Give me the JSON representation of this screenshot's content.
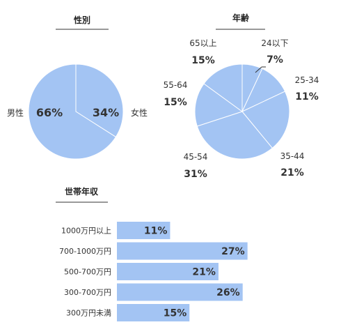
{
  "chart_data": [
    {
      "type": "pie",
      "title": "性別",
      "categories": [
        "女性",
        "男性"
      ],
      "values": [
        34,
        66
      ],
      "value_labels": [
        "34%",
        "66%"
      ],
      "color": "#a3c4f3",
      "stroke": "#ffffff"
    },
    {
      "type": "pie",
      "title": "年齢",
      "categories": [
        "24以下",
        "25-34",
        "35-44",
        "45-54",
        "55-64",
        "65以上"
      ],
      "values": [
        7,
        11,
        21,
        31,
        15,
        15
      ],
      "value_labels": [
        "7%",
        "11%",
        "21%",
        "31%",
        "15%",
        "15%"
      ],
      "color": "#a3c4f3",
      "stroke": "#ffffff"
    },
    {
      "type": "bar",
      "orientation": "horizontal",
      "title": "世帯年収",
      "categories": [
        "1000万円以上",
        "700-1000万円",
        "500-700万円",
        "300-700万円",
        "300万円未満"
      ],
      "values": [
        11,
        27,
        21,
        26,
        15
      ],
      "value_labels": [
        "11%",
        "27%",
        "21%",
        "26%",
        "15%"
      ],
      "color": "#a3c4f3"
    }
  ]
}
